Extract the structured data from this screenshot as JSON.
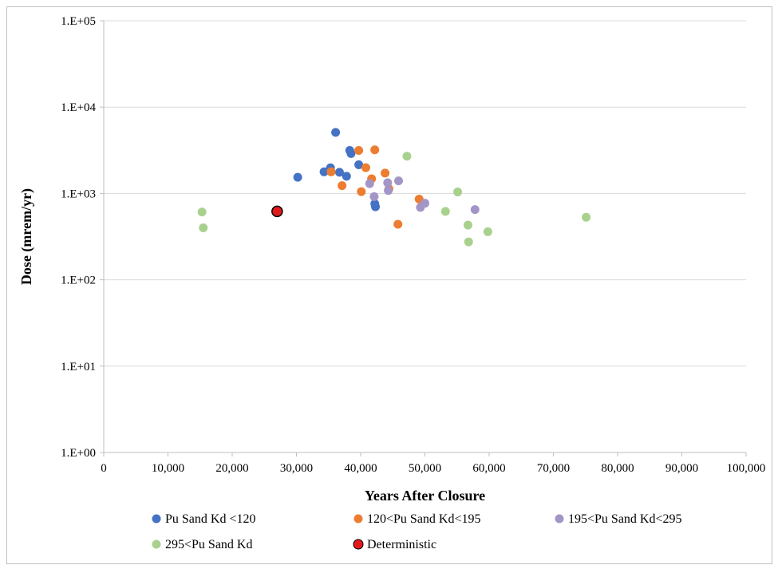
{
  "chart_data": {
    "type": "scatter",
    "title": "",
    "xlabel": "Years After Closure",
    "ylabel": "Dose (mrem/yr)",
    "xlim": [
      0,
      100000
    ],
    "ylim": [
      1,
      100000
    ],
    "y_scale": "log",
    "grid": "horizontal",
    "legend_position": "bottom",
    "x_ticks": [
      "0",
      "10,000",
      "20,000",
      "30,000",
      "40,000",
      "50,000",
      "60,000",
      "70,000",
      "80,000",
      "90,000",
      "100,000"
    ],
    "x_tick_values": [
      0,
      10000,
      20000,
      30000,
      40000,
      50000,
      60000,
      70000,
      80000,
      90000,
      100000
    ],
    "y_ticks": [
      "1.E+00",
      "1.E+01",
      "1.E+02",
      "1.E+03",
      "1.E+04",
      "1.E+05"
    ],
    "y_tick_values": [
      1,
      10,
      100,
      1000,
      10000,
      100000
    ],
    "series": [
      {
        "name": "Pu Sand Kd <120",
        "color": "#4472c4",
        "points": [
          [
            30200,
            1540
          ],
          [
            34300,
            1780
          ],
          [
            35300,
            1980
          ],
          [
            36100,
            5100
          ],
          [
            36700,
            1760
          ],
          [
            37800,
            1580
          ],
          [
            38300,
            3150
          ],
          [
            38500,
            2900
          ],
          [
            39700,
            2150
          ],
          [
            42200,
            760
          ],
          [
            42300,
            700
          ]
        ]
      },
      {
        "name": "120<Pu Sand Kd<195",
        "color": "#ed7d31",
        "points": [
          [
            35400,
            1780
          ],
          [
            37100,
            1230
          ],
          [
            39700,
            3150
          ],
          [
            40100,
            1050
          ],
          [
            40800,
            1990
          ],
          [
            41700,
            1480
          ],
          [
            42200,
            3200
          ],
          [
            43800,
            1720
          ],
          [
            44400,
            1130
          ],
          [
            45800,
            440
          ],
          [
            49100,
            860
          ]
        ]
      },
      {
        "name": "195<Pu Sand Kd<295",
        "color": "#a495c7",
        "points": [
          [
            41400,
            1300
          ],
          [
            42100,
            920
          ],
          [
            44200,
            1330
          ],
          [
            44300,
            1080
          ],
          [
            45900,
            1400
          ],
          [
            49300,
            690
          ],
          [
            50000,
            770
          ],
          [
            57800,
            650
          ]
        ]
      },
      {
        "name": "295<Pu Sand Kd",
        "color": "#a9d18e",
        "points": [
          [
            15300,
            610
          ],
          [
            15500,
            400
          ],
          [
            47200,
            2700
          ],
          [
            53200,
            620
          ],
          [
            55100,
            1040
          ],
          [
            56700,
            430
          ],
          [
            56800,
            275
          ],
          [
            59800,
            360
          ],
          [
            75100,
            530
          ]
        ]
      },
      {
        "name": "Deterministic",
        "color": "#e31a1c",
        "points": [
          [
            27000,
            620
          ]
        ]
      }
    ]
  }
}
